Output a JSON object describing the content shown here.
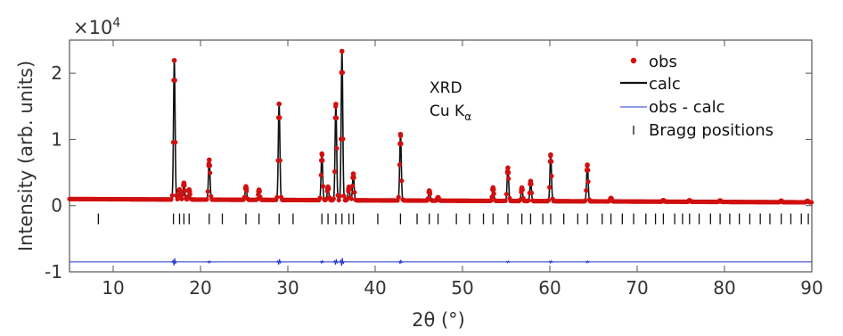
{
  "chart_data": {
    "type": "scatter",
    "title": "",
    "xlabel": "2θ (°)",
    "ylabel": "Intensity (arb. units)",
    "y_exponent_label": "×10",
    "y_exponent_power": "4",
    "xlim": [
      5,
      90
    ],
    "ylim": [
      -1,
      2.5
    ],
    "xticks": [
      10,
      20,
      30,
      40,
      50,
      60,
      70,
      80,
      90
    ],
    "xtick_labels": [
      "10",
      "20",
      "30",
      "40",
      "50",
      "60",
      "70",
      "80",
      "90"
    ],
    "yticks": [
      -1,
      0,
      1,
      2
    ],
    "ytick_labels": [
      "-1",
      "0",
      "1",
      "2"
    ],
    "annotation": {
      "line1": "XRD",
      "line2": "Cu K",
      "line2_sub": "α"
    },
    "legend": {
      "position": "top-right",
      "entries": [
        {
          "label": "obs",
          "marker": "dot"
        },
        {
          "label": "calc",
          "marker": "line"
        },
        {
          "label": "obs - calc",
          "marker": "thin-line"
        },
        {
          "label": "Bragg positions",
          "marker": "tick"
        }
      ]
    },
    "colors": {
      "obs": "#d01010",
      "calc": "#111111",
      "diff": "#2233cc",
      "bragg": "#111111"
    },
    "baseline": 0.1,
    "diff_offset": -0.85,
    "bragg_offset": -0.2,
    "peaks": [
      {
        "x": 17.0,
        "y": 2.2
      },
      {
        "x": 17.6,
        "y": 0.25
      },
      {
        "x": 18.1,
        "y": 0.35
      },
      {
        "x": 18.7,
        "y": 0.25
      },
      {
        "x": 21.0,
        "y": 0.7
      },
      {
        "x": 25.2,
        "y": 0.3
      },
      {
        "x": 26.7,
        "y": 0.25
      },
      {
        "x": 29.0,
        "y": 1.55
      },
      {
        "x": 33.9,
        "y": 0.8
      },
      {
        "x": 34.6,
        "y": 0.3
      },
      {
        "x": 35.5,
        "y": 1.55
      },
      {
        "x": 36.2,
        "y": 2.35
      },
      {
        "x": 37.0,
        "y": 0.3
      },
      {
        "x": 37.5,
        "y": 0.5
      },
      {
        "x": 42.9,
        "y": 1.1
      },
      {
        "x": 46.2,
        "y": 0.25
      },
      {
        "x": 47.2,
        "y": 0.15
      },
      {
        "x": 53.5,
        "y": 0.3
      },
      {
        "x": 55.2,
        "y": 0.6
      },
      {
        "x": 56.8,
        "y": 0.3
      },
      {
        "x": 57.8,
        "y": 0.4
      },
      {
        "x": 60.1,
        "y": 0.8
      },
      {
        "x": 64.3,
        "y": 0.65
      },
      {
        "x": 67.0,
        "y": 0.15
      },
      {
        "x": 73.0,
        "y": 0.12
      },
      {
        "x": 76.0,
        "y": 0.12
      },
      {
        "x": 79.5,
        "y": 0.12
      },
      {
        "x": 86.5,
        "y": 0.12
      },
      {
        "x": 89.5,
        "y": 0.12
      }
    ],
    "bragg_positions": [
      8.3,
      16.9,
      17.6,
      18.1,
      18.7,
      21.0,
      22.5,
      25.2,
      26.7,
      29.0,
      30.6,
      33.9,
      34.6,
      35.5,
      36.2,
      37.0,
      37.5,
      40.3,
      42.9,
      44.8,
      46.2,
      47.2,
      49.3,
      50.8,
      52.4,
      53.5,
      55.2,
      56.8,
      57.8,
      59.2,
      60.1,
      61.6,
      63.2,
      64.3,
      66.0,
      67.0,
      68.3,
      69.6,
      71.0,
      72.1,
      73.0,
      74.3,
      75.2,
      76.0,
      77.1,
      78.4,
      79.5,
      80.6,
      81.7,
      82.9,
      84.1,
      85.2,
      86.5,
      87.6,
      88.8,
      89.6
    ]
  }
}
